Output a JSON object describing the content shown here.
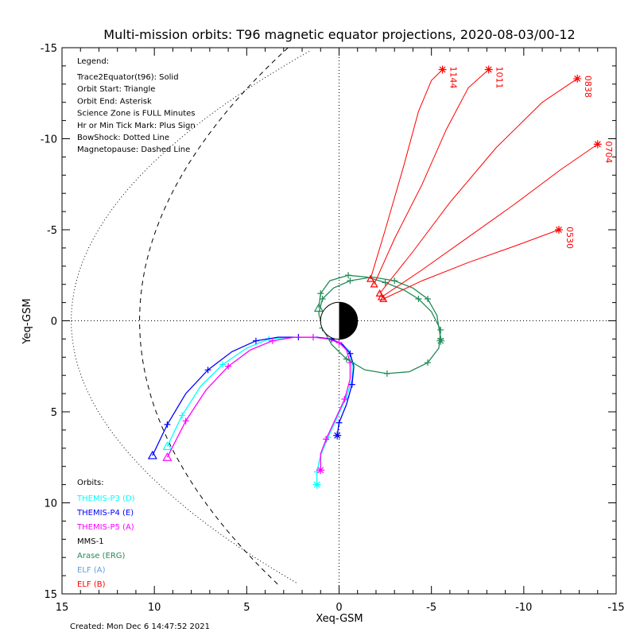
{
  "chart_data": {
    "type": "line",
    "title": "Multi-mission orbits: T96 magnetic equator projections, 2020-08-03/00-12",
    "xlabel": "Xeq-GSM",
    "ylabel": "Yeq-GSM",
    "xlim": [
      15,
      -15
    ],
    "ylim": [
      -15,
      15
    ],
    "x_ticks": [
      "15",
      "10",
      "5",
      "0",
      "-5",
      "-10",
      "-15"
    ],
    "y_ticks": [
      "-15",
      "-10",
      "-5",
      "0",
      "5",
      "10",
      "15"
    ],
    "legend_title": "Legend:",
    "legend_lines": [
      "Trace2Equator(t96): Solid",
      "Orbit Start: Triangle",
      "Orbit End: Asterisk",
      "Science Zone is FULL Minutes",
      "Hr or Min Tick Mark: Plus Sign",
      "BowShock: Dotted Line",
      "Magnetopause: Dashed Line"
    ],
    "orbits_title": "Orbits:",
    "series": [
      {
        "name": "THEMIS-P3 (D)",
        "color": "#00ffff",
        "points": [
          [
            9.3,
            6.9
          ],
          [
            8.5,
            5.2
          ],
          [
            7.5,
            3.6
          ],
          [
            6.3,
            2.4
          ],
          [
            5.0,
            1.5
          ],
          [
            3.8,
            1.0
          ],
          [
            2.5,
            0.9
          ],
          [
            1.4,
            0.9
          ],
          [
            0.6,
            1.0
          ],
          [
            0.0,
            1.2
          ],
          [
            -0.5,
            1.6
          ],
          [
            -0.7,
            2.3
          ],
          [
            -0.7,
            3.2
          ],
          [
            -0.4,
            4.2
          ],
          [
            0.1,
            5.3
          ],
          [
            0.6,
            6.4
          ],
          [
            1.0,
            7.4
          ],
          [
            1.2,
            8.3
          ],
          [
            1.2,
            9.0
          ]
        ]
      },
      {
        "name": "THEMIS-P4 (E)",
        "color": "#0000ff",
        "points": [
          [
            10.1,
            7.4
          ],
          [
            9.3,
            5.7
          ],
          [
            8.3,
            4.0
          ],
          [
            7.1,
            2.7
          ],
          [
            5.8,
            1.7
          ],
          [
            4.5,
            1.1
          ],
          [
            3.3,
            0.9
          ],
          [
            2.2,
            0.9
          ],
          [
            1.2,
            0.9
          ],
          [
            0.4,
            1.0
          ],
          [
            -0.2,
            1.3
          ],
          [
            -0.6,
            1.8
          ],
          [
            -0.8,
            2.5
          ],
          [
            -0.7,
            3.5
          ],
          [
            -0.4,
            4.6
          ],
          [
            0.0,
            5.6
          ],
          [
            0.1,
            6.3
          ]
        ]
      },
      {
        "name": "THEMIS-P5 (A)",
        "color": "#ff00ff",
        "points": [
          [
            9.3,
            7.5
          ],
          [
            8.3,
            5.5
          ],
          [
            7.2,
            3.8
          ],
          [
            6.0,
            2.5
          ],
          [
            4.8,
            1.6
          ],
          [
            3.6,
            1.1
          ],
          [
            2.4,
            0.9
          ],
          [
            1.4,
            0.9
          ],
          [
            0.6,
            1.0
          ],
          [
            0.0,
            1.2
          ],
          [
            -0.4,
            1.6
          ],
          [
            -0.6,
            2.3
          ],
          [
            -0.6,
            3.2
          ],
          [
            -0.3,
            4.3
          ],
          [
            0.2,
            5.4
          ],
          [
            0.7,
            6.5
          ],
          [
            1.0,
            7.3
          ],
          [
            1.0,
            8.2
          ]
        ]
      },
      {
        "name": "MMS-1",
        "color": "#000000",
        "points": []
      },
      {
        "name": "Arase (ERG)",
        "color": "#228b57",
        "points": [
          [
            1.1,
            -0.7
          ],
          [
            1.0,
            -1.5
          ],
          [
            0.5,
            -2.2
          ],
          [
            -0.5,
            -2.5
          ],
          [
            -1.5,
            -2.4
          ],
          [
            -2.5,
            -2.1
          ],
          [
            -3.5,
            -1.7
          ],
          [
            -4.3,
            -1.2
          ],
          [
            -5.0,
            -0.5
          ],
          [
            -5.5,
            0.5
          ],
          [
            -5.4,
            1.5
          ],
          [
            -4.8,
            2.3
          ],
          [
            -3.8,
            2.8
          ],
          [
            -2.6,
            2.9
          ],
          [
            -1.4,
            2.7
          ],
          [
            -0.4,
            2.1
          ],
          [
            0.4,
            1.3
          ],
          [
            0.9,
            0.4
          ],
          [
            1.1,
            -0.4
          ],
          [
            0.9,
            -1.2
          ],
          [
            0.3,
            -1.8
          ],
          [
            -0.6,
            -2.2
          ],
          [
            -1.8,
            -2.4
          ],
          [
            -3.0,
            -2.2
          ],
          [
            -4.0,
            -1.8
          ],
          [
            -4.8,
            -1.2
          ],
          [
            -5.3,
            -0.3
          ],
          [
            -5.5,
            1.0
          ],
          [
            -5.5,
            1.1
          ]
        ]
      },
      {
        "name": "ELF (A)",
        "color": "#5f9fdf",
        "points": []
      },
      {
        "name": "ELF (B)",
        "color": "#ff0000",
        "points": []
      }
    ],
    "elf_b_traces": [
      {
        "label": "0530",
        "points": [
          [
            -2.4,
            -1.2
          ],
          [
            -4.5,
            -2.2
          ],
          [
            -7.0,
            -3.2
          ],
          [
            -9.5,
            -4.1
          ],
          [
            -11.9,
            -5.0
          ]
        ]
      },
      {
        "label": "0704",
        "points": [
          [
            -2.3,
            -1.3
          ],
          [
            -4.5,
            -2.8
          ],
          [
            -7.0,
            -4.6
          ],
          [
            -9.5,
            -6.4
          ],
          [
            -12.0,
            -8.3
          ],
          [
            -14.0,
            -9.7
          ]
        ]
      },
      {
        "label": "0838",
        "points": [
          [
            -2.2,
            -1.5
          ],
          [
            -4.0,
            -3.8
          ],
          [
            -6.0,
            -6.5
          ],
          [
            -8.5,
            -9.5
          ],
          [
            -11.0,
            -12.0
          ],
          [
            -12.9,
            -13.3
          ]
        ]
      },
      {
        "label": "1011",
        "points": [
          [
            -1.9,
            -2.0
          ],
          [
            -3.0,
            -4.5
          ],
          [
            -4.5,
            -7.5
          ],
          [
            -5.8,
            -10.5
          ],
          [
            -7.0,
            -12.8
          ],
          [
            -8.1,
            -13.8
          ]
        ]
      },
      {
        "label": "1144",
        "points": [
          [
            -1.7,
            -2.3
          ],
          [
            -2.5,
            -5.0
          ],
          [
            -3.5,
            -8.5
          ],
          [
            -4.3,
            -11.5
          ],
          [
            -5.0,
            -13.2
          ],
          [
            -5.6,
            -13.8
          ]
        ]
      }
    ],
    "grid": false,
    "created": "Created: Mon Dec  6 14:47:52 2021"
  }
}
